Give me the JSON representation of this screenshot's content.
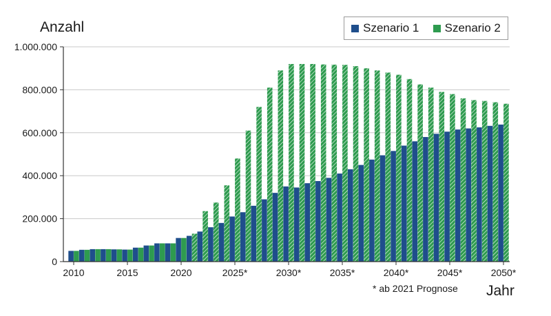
{
  "chart_data": {
    "type": "bar",
    "ylabel": "Anzahl",
    "xlabel": "Jahr",
    "footnote": "* ab 2021 Prognose",
    "ylim": [
      0,
      1000000
    ],
    "yticks": [
      {
        "value": 0,
        "label": "0"
      },
      {
        "value": 200000,
        "label": "200.000"
      },
      {
        "value": 400000,
        "label": "400.000"
      },
      {
        "value": 600000,
        "label": "600.000"
      },
      {
        "value": 800000,
        "label": "800.000"
      },
      {
        "value": 1000000,
        "label": "1.000.000"
      }
    ],
    "xticks": [
      {
        "index": 0,
        "label": "2010"
      },
      {
        "index": 5,
        "label": "2015"
      },
      {
        "index": 10,
        "label": "2020"
      },
      {
        "index": 15,
        "label": "2025*"
      },
      {
        "index": 20,
        "label": "2030*"
      },
      {
        "index": 25,
        "label": "2035*"
      },
      {
        "index": 30,
        "label": "2040*"
      },
      {
        "index": 35,
        "label": "2045*"
      },
      {
        "index": 40,
        "label": "2050*"
      }
    ],
    "categories": [
      "2010",
      "2011",
      "2012",
      "2013",
      "2014",
      "2015",
      "2016",
      "2017",
      "2018",
      "2019",
      "2020",
      "2021",
      "2022",
      "2023",
      "2024",
      "2025",
      "2026",
      "2027",
      "2028",
      "2029",
      "2030",
      "2031",
      "2032",
      "2033",
      "2034",
      "2035",
      "2036",
      "2037",
      "2038",
      "2039",
      "2040",
      "2041",
      "2042",
      "2043",
      "2044",
      "2045",
      "2046",
      "2047",
      "2048",
      "2049",
      "2050"
    ],
    "series": [
      {
        "name": "Szenario 1",
        "color": "#1f4e8c",
        "values": [
          50000,
          55000,
          58000,
          58000,
          57000,
          56000,
          65000,
          75000,
          85000,
          85000,
          110000,
          120000,
          140000,
          160000,
          180000,
          210000,
          230000,
          260000,
          290000,
          320000,
          350000,
          345000,
          365000,
          375000,
          390000,
          410000,
          430000,
          450000,
          475000,
          495000,
          515000,
          540000,
          560000,
          580000,
          595000,
          605000,
          615000,
          620000,
          625000,
          632000,
          638000
        ]
      },
      {
        "name": "Szenario 2",
        "color": "#2e9b4f",
        "values": [
          50000,
          55000,
          58000,
          58000,
          57000,
          56000,
          65000,
          75000,
          85000,
          85000,
          110000,
          130000,
          235000,
          275000,
          355000,
          480000,
          610000,
          720000,
          810000,
          890000,
          920000,
          920000,
          920000,
          918000,
          917000,
          916000,
          910000,
          900000,
          890000,
          880000,
          870000,
          850000,
          825000,
          810000,
          790000,
          780000,
          760000,
          752000,
          748000,
          742000,
          735000
        ]
      }
    ]
  }
}
